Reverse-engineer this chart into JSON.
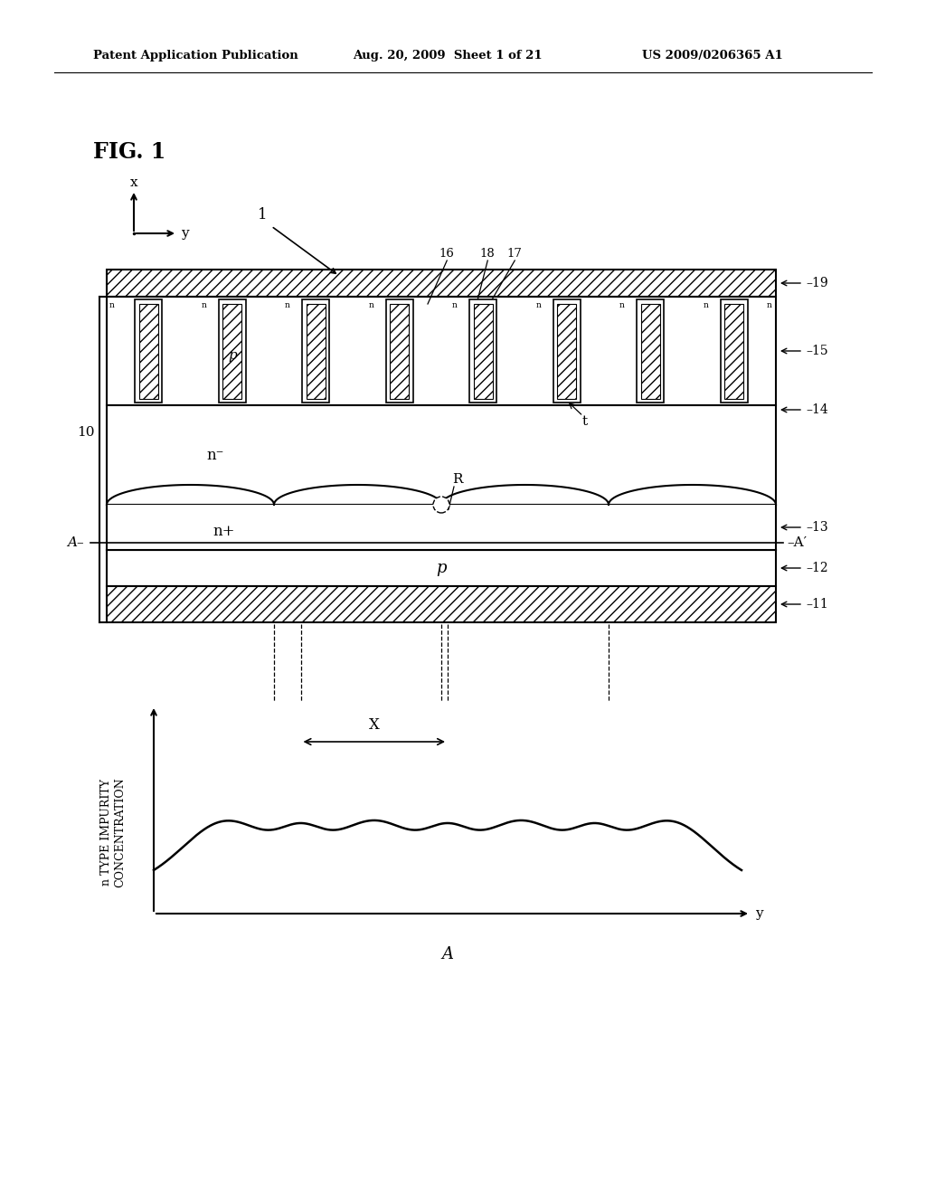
{
  "header_left": "Patent Application Publication",
  "header_mid": "Aug. 20, 2009  Sheet 1 of 21",
  "header_right": "US 2009/0206365 A1",
  "bg_color": "#ffffff"
}
